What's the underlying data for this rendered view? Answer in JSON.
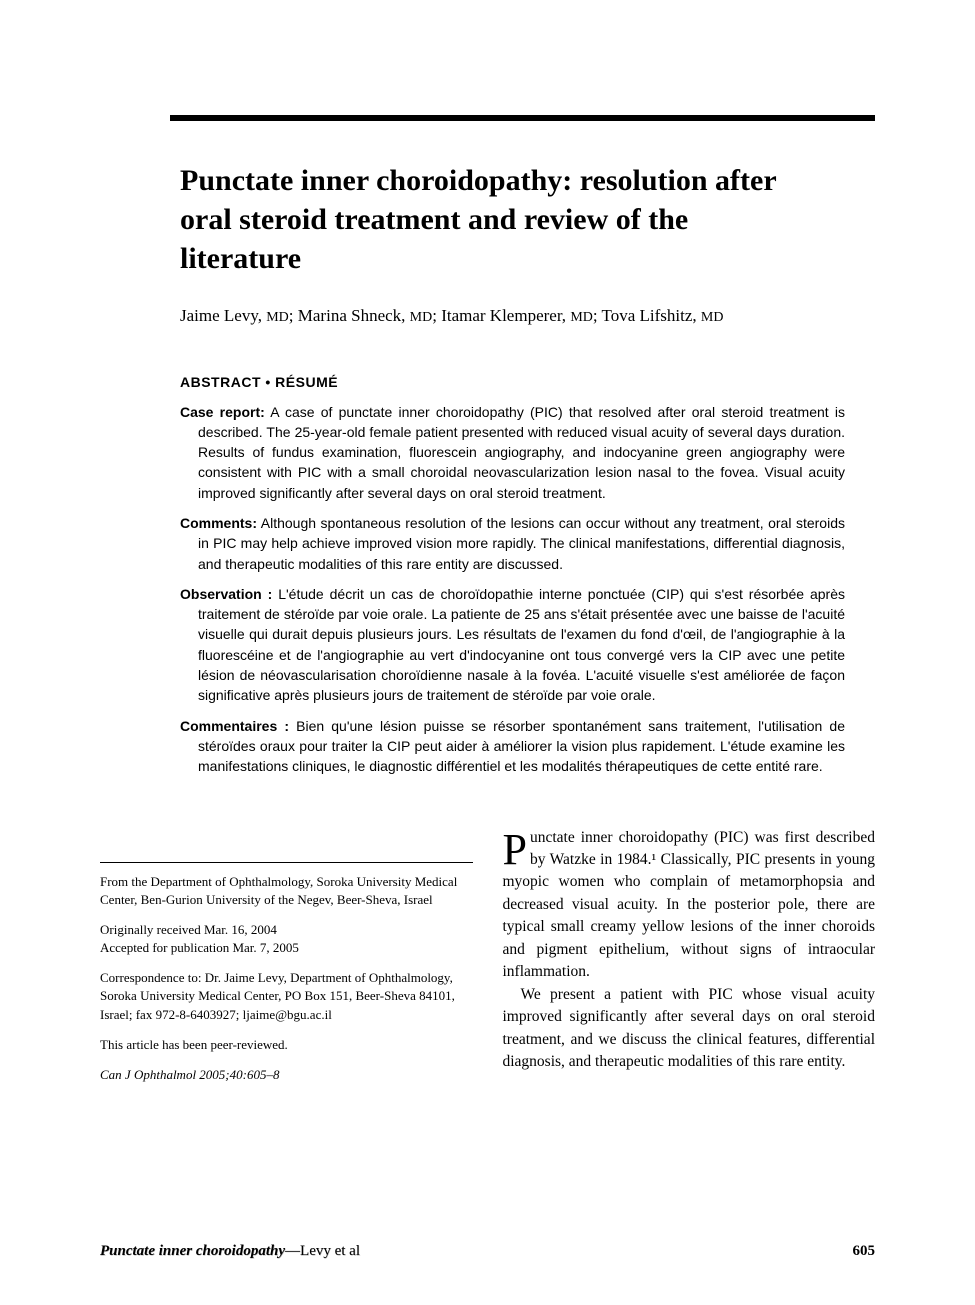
{
  "title": "Punctate inner choroidopathy: resolution after oral steroid treatment and review of the literature",
  "authors_html": "Jaime Levy, <span class='degree'>MD</span>; Marina Shneck, <span class='degree'>MD</span>; Itamar Klemperer, <span class='degree'>MD</span>; Tova Lifshitz, <span class='degree'>MD</span>",
  "abstract_heading": "ABSTRACT • RÉSUMÉ",
  "abstract": [
    {
      "label": "Case report:",
      "text": " A case of punctate inner choroidopathy (PIC) that resolved after oral steroid treatment is described. The 25-year-old female patient presented with reduced visual acuity of several days duration. Results of fundus examination, fluorescein angiography, and indocyanine green angiography were consistent with PIC with a small choroidal neovascularization lesion nasal to the fovea. Visual acuity improved significantly after several days on oral steroid treatment."
    },
    {
      "label": "Comments:",
      "text": " Although spontaneous resolution of the lesions can occur without any treatment, oral steroids in PIC may help achieve improved vision more rapidly. The clinical manifestations, differential diagnosis, and therapeutic modalities of this rare entity are discussed."
    },
    {
      "label": "Observation :",
      "text": " L'étude décrit un cas de choroïdopathie interne ponctuée (CIP) qui s'est résorbée après traitement de stéroïde par voie orale. La patiente de 25 ans s'était présentée avec une baisse de l'acuité visuelle qui durait depuis plusieurs jours. Les résultats de l'examen du fond d'œil, de l'angiographie à la fluorescéine et de l'angiographie au vert d'indocyanine ont tous convergé vers la CIP avec une petite lésion de néovascularisation choroïdienne nasale à la fovéa. L'acuité visuelle s'est améliorée de façon significative après plusieurs jours de traitement de stéroïde par voie orale."
    },
    {
      "label": "Commentaires :",
      "text": " Bien qu'une lésion puisse se résorber spontanément sans traitement, l'utilisation de stéroïdes oraux pour traiter la CIP peut aider à améliorer la vision plus rapidement. L'étude examine les manifestations cliniques, le diagnostic différentiel et les modalités thérapeutiques de cette entité rare."
    }
  ],
  "affiliation": "From the Department of Ophthalmology, Soroka University Medical Center, Ben-Gurion University of the Negev, Beer-Sheva, Israel",
  "received": "Originally received Mar. 16, 2004",
  "accepted": "Accepted for publication Mar. 7, 2005",
  "correspondence": "Correspondence to: Dr. Jaime Levy, Department of Ophthalmology, Soroka University Medical Center, PO Box 151, Beer-Sheva 84101, Israel; fax 972-8-6403927; ljaime@bgu.ac.il",
  "peer": "This article has been peer-reviewed.",
  "citation": "Can J Ophthalmol 2005;40:605–8",
  "body": {
    "p1_dropcap": "P",
    "p1": "unctate inner choroidopathy (PIC) was first described by Watzke in 1984.¹ Classically, PIC presents in young myopic women who complain of metamorphopsia and decreased visual acuity. In the posterior pole, there are typical small creamy yellow lesions of the inner choroids and pigment epithelium, without signs of intraocular inflammation.",
    "p2": "We present a patient with PIC whose visual acuity improved significantly after several days on oral steroid treatment, and we discuss the clinical features, differential diagnosis, and therapeutic modalities of this rare entity."
  },
  "running_head_italic": "Punctate inner choroidopathy",
  "running_head_rest": "—Levy et al",
  "page_number": "605"
}
